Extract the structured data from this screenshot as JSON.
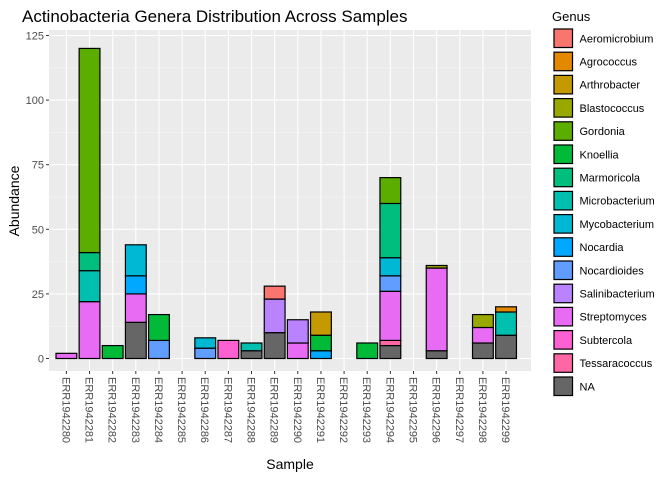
{
  "chart_data": {
    "type": "bar",
    "stacked": true,
    "title": "Actinobacteria Genera Distribution Across Samples",
    "xlabel": "Sample",
    "ylabel": "Abundance",
    "ylim": [
      0,
      125
    ],
    "yticks": [
      0,
      25,
      50,
      75,
      100,
      125
    ],
    "grid": true,
    "legend_title": "Genus",
    "legend_position": "right",
    "categories": [
      "ERR1942280",
      "ERR1942281",
      "ERR1942282",
      "ERR1942283",
      "ERR1942284",
      "ERR1942285",
      "ERR1942286",
      "ERR1942287",
      "ERR1942288",
      "ERR1942289",
      "ERR1942290",
      "ERR1942291",
      "ERR1942292",
      "ERR1942293",
      "ERR1942294",
      "ERR1942295",
      "ERR1942296",
      "ERR1942297",
      "ERR1942298",
      "ERR1942299"
    ],
    "genera": [
      {
        "name": "Aeromicrobium",
        "color": "#F8766D"
      },
      {
        "name": "Agrococcus",
        "color": "#E38900"
      },
      {
        "name": "Arthrobacter",
        "color": "#C49A00"
      },
      {
        "name": "Blastococcus",
        "color": "#99A800"
      },
      {
        "name": "Gordonia",
        "color": "#53B400"
      },
      {
        "name": "Knoellia",
        "color": "#00BC56"
      },
      {
        "name": "Marmoricola",
        "color": "#00C094"
      },
      {
        "name": "Microbacterium",
        "color": "#00BFC4"
      },
      {
        "name": "Mycobacterium",
        "color": "#00B6EB"
      },
      {
        "name": "Nocardia",
        "color": "#06A4FF"
      },
      {
        "name": "Nocardioides",
        "color": "#A58AFF"
      },
      {
        "name": "Salinibacterium",
        "color": "#DF70F8"
      },
      {
        "name": "Streptomyces",
        "color": "#FB61D7"
      },
      {
        "name": "Subtercola",
        "color": "#FF66A8"
      },
      {
        "name": "Tessaracoccus",
        "color": "#FF4FA0"
      },
      {
        "name": "NA",
        "color": "#666666"
      }
    ],
    "fill_colors": {
      "Aeromicrobium": "#F8766D",
      "Agrococcus": "#E38900",
      "Arthrobacter": "#C49A00",
      "Blastococcus": "#99A800",
      "Gordonia": "#5BAE00",
      "Knoellia": "#00BA38",
      "Marmoricola": "#00BE7D",
      "Microbacterium": "#00BFAF",
      "Mycobacterium": "#00B8D4",
      "Nocardia": "#00A9FF",
      "Nocardioides": "#619CFF",
      "Salinibacterium": "#B983FF",
      "Streptomyces": "#E76BF3",
      "Subtercola": "#FD61D1",
      "Tessaracoccus": "#FF67A4",
      "NA": "#666666"
    },
    "series": [
      {
        "name": "Aeromicrobium",
        "values": [
          0,
          0,
          0,
          0,
          0,
          0,
          0,
          0,
          0,
          5,
          0,
          0,
          0,
          0,
          0,
          0,
          0,
          0,
          0,
          0
        ]
      },
      {
        "name": "Agrococcus",
        "values": [
          0,
          0,
          0,
          0,
          0,
          0,
          0,
          0,
          0,
          0,
          0,
          0,
          0,
          0,
          0,
          0,
          0,
          0,
          0,
          2
        ]
      },
      {
        "name": "Arthrobacter",
        "values": [
          0,
          0,
          0,
          0,
          0,
          0,
          0,
          0,
          0,
          0,
          0,
          9,
          0,
          0,
          0,
          0,
          0,
          0,
          0,
          0
        ]
      },
      {
        "name": "Blastococcus",
        "values": [
          0,
          0,
          0,
          0,
          0,
          0,
          0,
          0,
          0,
          0,
          0,
          0,
          0,
          0,
          0,
          0,
          1,
          0,
          5,
          0
        ]
      },
      {
        "name": "Gordonia",
        "values": [
          0,
          79,
          0,
          0,
          0,
          0,
          0,
          0,
          0,
          0,
          0,
          0,
          0,
          0,
          10,
          0,
          0,
          0,
          0,
          0
        ]
      },
      {
        "name": "Knoellia",
        "values": [
          0,
          0,
          5,
          0,
          10,
          0,
          0,
          0,
          0,
          0,
          0,
          6,
          0,
          6,
          0,
          0,
          0,
          0,
          0,
          0
        ]
      },
      {
        "name": "Marmoricola",
        "values": [
          0,
          7,
          0,
          0,
          0,
          0,
          0,
          0,
          0,
          0,
          0,
          0,
          0,
          0,
          21,
          0,
          0,
          0,
          0,
          0
        ]
      },
      {
        "name": "Microbacterium",
        "values": [
          0,
          12,
          0,
          0,
          0,
          0,
          0,
          0,
          3,
          0,
          0,
          0,
          0,
          0,
          0,
          0,
          0,
          0,
          0,
          9
        ]
      },
      {
        "name": "Mycobacterium",
        "values": [
          0,
          0,
          0,
          12,
          0,
          0,
          4,
          0,
          0,
          0,
          0,
          0,
          0,
          0,
          7,
          0,
          0,
          0,
          0,
          0
        ]
      },
      {
        "name": "Nocardia",
        "values": [
          0,
          0,
          0,
          7,
          0,
          0,
          0,
          0,
          0,
          0,
          0,
          3,
          0,
          0,
          0,
          0,
          0,
          0,
          0,
          0
        ]
      },
      {
        "name": "Nocardioides",
        "values": [
          0,
          0,
          0,
          0,
          7,
          0,
          4,
          0,
          0,
          0,
          0,
          0,
          0,
          0,
          6,
          0,
          0,
          0,
          0,
          0
        ]
      },
      {
        "name": "Salinibacterium",
        "values": [
          0,
          0,
          0,
          0,
          0,
          0,
          0,
          0,
          0,
          13,
          9,
          0,
          0,
          0,
          0,
          0,
          0,
          0,
          0,
          0
        ]
      },
      {
        "name": "Streptomyces",
        "values": [
          2,
          22,
          0,
          11,
          0,
          0,
          0,
          0,
          0,
          0,
          6,
          0,
          0,
          0,
          19,
          0,
          32,
          0,
          6,
          0
        ]
      },
      {
        "name": "Subtercola",
        "values": [
          0,
          0,
          0,
          0,
          0,
          0,
          0,
          7,
          0,
          0,
          0,
          0,
          0,
          0,
          0,
          0,
          0,
          0,
          0,
          0
        ]
      },
      {
        "name": "Tessaracoccus",
        "values": [
          0,
          0,
          0,
          0,
          0,
          0,
          0,
          0,
          0,
          0,
          0,
          0,
          0,
          0,
          2,
          0,
          0,
          0,
          0,
          0
        ]
      },
      {
        "name": "NA",
        "values": [
          0,
          0,
          0,
          14,
          0,
          0,
          0,
          0,
          3,
          10,
          0,
          0,
          0,
          0,
          5,
          0,
          3,
          0,
          6,
          9
        ]
      }
    ]
  }
}
